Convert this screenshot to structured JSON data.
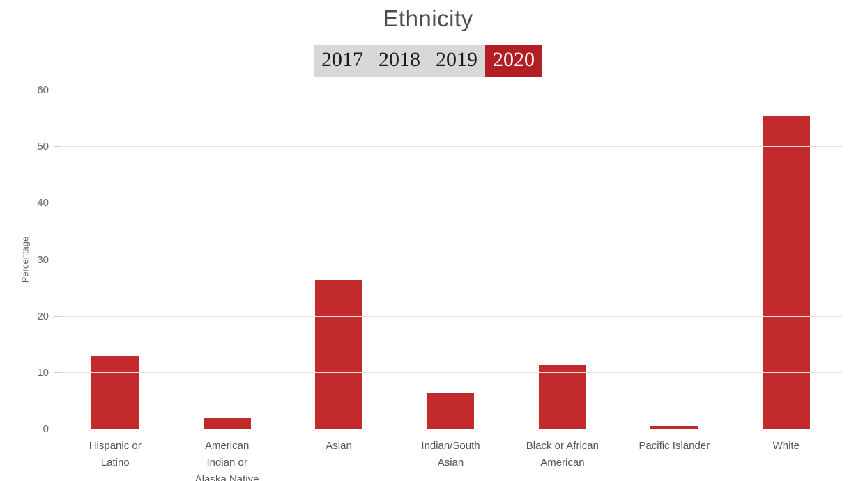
{
  "chart_data": {
    "type": "bar",
    "title": "Ethnicity",
    "ylabel": "Percentage",
    "ylim": [
      0,
      60
    ],
    "yticks": [
      0,
      10,
      20,
      30,
      40,
      50,
      60
    ],
    "grid": true,
    "categories": [
      "Hispanic or Latino",
      "American Indian or Alaska Native",
      "Asian",
      "Indian/South Asian",
      "Black or African American",
      "Pacific Islander",
      "White"
    ],
    "category_lines": [
      [
        "Hispanic or",
        "Latino"
      ],
      [
        "American",
        "Indian or",
        "Alaska Native"
      ],
      [
        "Asian"
      ],
      [
        "Indian/South",
        "Asian"
      ],
      [
        "Black or African",
        "American"
      ],
      [
        "Pacific Islander"
      ],
      [
        "White"
      ]
    ],
    "values": [
      13,
      2,
      26.5,
      6.4,
      11.5,
      0.6,
      55.6
    ],
    "bar_color": "#c32a2c"
  },
  "tabs": {
    "items": [
      {
        "label": "2017",
        "active": false
      },
      {
        "label": "2018",
        "active": false
      },
      {
        "label": "2019",
        "active": false
      },
      {
        "label": "2020",
        "active": true
      }
    ],
    "active_bg": "#b21e24",
    "active_color": "#ffffff",
    "inactive_bg": "#d8d8d8",
    "inactive_color": "#1a1a1a"
  }
}
